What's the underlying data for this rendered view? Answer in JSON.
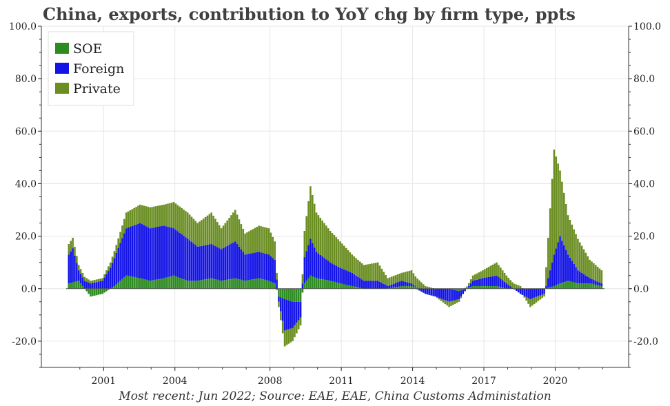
{
  "title": "China, exports, contribution to YoY chg by firm type, ppts",
  "caption": "Most recent: Jun 2022; Source: EAE, EAE, China Customs Administation",
  "colors": {
    "SOE": "#2e8b22",
    "Foreign": "#1414e6",
    "Private": "#6b8e23",
    "grid": "#e6e6e6",
    "axis": "#333333"
  },
  "chart_data": {
    "type": "bar",
    "stacked": true,
    "frequency": "monthly",
    "x_range": [
      "2000-01",
      "2022-06"
    ],
    "ylim": [
      -30,
      100
    ],
    "y_ticks": [
      -20,
      0,
      20,
      40,
      60,
      80,
      100
    ],
    "y_tick_labels": [
      "-20.0",
      "0.0",
      "20.0",
      "40.0",
      "60.0",
      "80.0",
      "100.0"
    ],
    "y_axes": "left and right (mirrored)",
    "x_tick_labels": [
      "2001",
      "2004",
      "2008",
      "2011",
      "2014",
      "2017",
      "2020"
    ],
    "grid": true,
    "legend": {
      "position": "top-left",
      "entries": [
        "SOE",
        "Foreign",
        "Private"
      ]
    },
    "series_anchors_note": "Monthly values from Jan 2000 to Jun 2022 (sampled anchors, linearly interpolated between; each value is [year, month, value])",
    "series": [
      {
        "name": "SOE",
        "anchors": [
          [
            2000,
            1,
            2
          ],
          [
            2000,
            6,
            3
          ],
          [
            2000,
            12,
            -3
          ],
          [
            2001,
            6,
            -2
          ],
          [
            2001,
            12,
            1
          ],
          [
            2002,
            6,
            5
          ],
          [
            2003,
            1,
            4
          ],
          [
            2003,
            6,
            3
          ],
          [
            2004,
            1,
            4
          ],
          [
            2004,
            6,
            5
          ],
          [
            2005,
            1,
            3
          ],
          [
            2005,
            6,
            3
          ],
          [
            2006,
            1,
            4
          ],
          [
            2006,
            6,
            3
          ],
          [
            2007,
            1,
            4
          ],
          [
            2007,
            6,
            3
          ],
          [
            2008,
            1,
            4
          ],
          [
            2008,
            6,
            3
          ],
          [
            2008,
            9,
            2
          ],
          [
            2008,
            11,
            -3
          ],
          [
            2009,
            2,
            -4
          ],
          [
            2009,
            6,
            -5
          ],
          [
            2009,
            10,
            -5
          ],
          [
            2009,
            12,
            2
          ],
          [
            2010,
            3,
            5
          ],
          [
            2010,
            6,
            4
          ],
          [
            2011,
            1,
            3
          ],
          [
            2011,
            6,
            2
          ],
          [
            2011,
            12,
            1
          ],
          [
            2012,
            6,
            0
          ],
          [
            2013,
            1,
            0
          ],
          [
            2013,
            6,
            0
          ],
          [
            2014,
            1,
            1
          ],
          [
            2014,
            6,
            1
          ],
          [
            2015,
            1,
            0
          ],
          [
            2015,
            6,
            0
          ],
          [
            2016,
            1,
            0
          ],
          [
            2016,
            6,
            -1
          ],
          [
            2017,
            1,
            1
          ],
          [
            2017,
            6,
            1
          ],
          [
            2018,
            1,
            1
          ],
          [
            2018,
            6,
            0
          ],
          [
            2019,
            1,
            0
          ],
          [
            2019,
            6,
            0
          ],
          [
            2020,
            1,
            0
          ],
          [
            2020,
            6,
            1
          ],
          [
            2020,
            9,
            2
          ],
          [
            2021,
            1,
            3
          ],
          [
            2021,
            6,
            2
          ],
          [
            2021,
            12,
            2
          ],
          [
            2022,
            6,
            1
          ]
        ]
      },
      {
        "name": "Foreign",
        "anchors": [
          [
            2000,
            1,
            11
          ],
          [
            2000,
            3,
            13
          ],
          [
            2000,
            6,
            4
          ],
          [
            2000,
            12,
            2
          ],
          [
            2001,
            6,
            3
          ],
          [
            2001,
            10,
            8
          ],
          [
            2002,
            1,
            12
          ],
          [
            2002,
            6,
            18
          ],
          [
            2003,
            1,
            21
          ],
          [
            2003,
            6,
            20
          ],
          [
            2004,
            1,
            20
          ],
          [
            2004,
            6,
            18
          ],
          [
            2005,
            1,
            16
          ],
          [
            2005,
            6,
            13
          ],
          [
            2006,
            1,
            13
          ],
          [
            2006,
            6,
            12
          ],
          [
            2007,
            1,
            14
          ],
          [
            2007,
            6,
            10
          ],
          [
            2008,
            1,
            10
          ],
          [
            2008,
            6,
            10
          ],
          [
            2008,
            9,
            9
          ],
          [
            2008,
            11,
            -2
          ],
          [
            2009,
            2,
            -12
          ],
          [
            2009,
            6,
            -10
          ],
          [
            2009,
            10,
            -6
          ],
          [
            2009,
            12,
            10
          ],
          [
            2010,
            3,
            14
          ],
          [
            2010,
            6,
            10
          ],
          [
            2011,
            1,
            7
          ],
          [
            2011,
            6,
            6
          ],
          [
            2011,
            12,
            5
          ],
          [
            2012,
            6,
            3
          ],
          [
            2013,
            1,
            3
          ],
          [
            2013,
            6,
            1
          ],
          [
            2014,
            1,
            2
          ],
          [
            2014,
            6,
            1
          ],
          [
            2015,
            1,
            -2
          ],
          [
            2015,
            6,
            -3
          ],
          [
            2016,
            1,
            -5
          ],
          [
            2016,
            6,
            -3
          ],
          [
            2017,
            1,
            2
          ],
          [
            2017,
            6,
            3
          ],
          [
            2018,
            1,
            4
          ],
          [
            2018,
            6,
            2
          ],
          [
            2019,
            1,
            -2
          ],
          [
            2019,
            6,
            -4
          ],
          [
            2020,
            1,
            -2
          ],
          [
            2020,
            6,
            12
          ],
          [
            2020,
            9,
            18
          ],
          [
            2021,
            1,
            10
          ],
          [
            2021,
            6,
            5
          ],
          [
            2021,
            12,
            2
          ],
          [
            2022,
            6,
            1
          ]
        ]
      },
      {
        "name": "Private",
        "anchors": [
          [
            2000,
            1,
            4
          ],
          [
            2000,
            3,
            4
          ],
          [
            2000,
            6,
            2
          ],
          [
            2000,
            12,
            1
          ],
          [
            2001,
            6,
            1
          ],
          [
            2001,
            10,
            2
          ],
          [
            2002,
            1,
            3
          ],
          [
            2002,
            6,
            6
          ],
          [
            2003,
            1,
            7
          ],
          [
            2003,
            6,
            8
          ],
          [
            2004,
            1,
            8
          ],
          [
            2004,
            6,
            10
          ],
          [
            2005,
            1,
            10
          ],
          [
            2005,
            6,
            9
          ],
          [
            2006,
            1,
            12
          ],
          [
            2006,
            6,
            8
          ],
          [
            2007,
            1,
            12
          ],
          [
            2007,
            6,
            8
          ],
          [
            2008,
            1,
            10
          ],
          [
            2008,
            6,
            10
          ],
          [
            2008,
            9,
            7
          ],
          [
            2008,
            11,
            -2
          ],
          [
            2009,
            2,
            -6
          ],
          [
            2009,
            6,
            -5
          ],
          [
            2009,
            10,
            -3
          ],
          [
            2009,
            12,
            10
          ],
          [
            2010,
            3,
            20
          ],
          [
            2010,
            6,
            15
          ],
          [
            2011,
            1,
            12
          ],
          [
            2011,
            6,
            10
          ],
          [
            2011,
            12,
            7
          ],
          [
            2012,
            6,
            6
          ],
          [
            2013,
            1,
            7
          ],
          [
            2013,
            6,
            3
          ],
          [
            2014,
            1,
            3
          ],
          [
            2014,
            6,
            5
          ],
          [
            2015,
            1,
            1
          ],
          [
            2015,
            6,
            0
          ],
          [
            2016,
            1,
            -2
          ],
          [
            2016,
            6,
            -1
          ],
          [
            2017,
            1,
            2
          ],
          [
            2017,
            6,
            3
          ],
          [
            2018,
            1,
            5
          ],
          [
            2018,
            6,
            3
          ],
          [
            2019,
            1,
            1
          ],
          [
            2019,
            6,
            -3
          ],
          [
            2020,
            1,
            -1
          ],
          [
            2020,
            6,
            40
          ],
          [
            2020,
            9,
            25
          ],
          [
            2021,
            1,
            15
          ],
          [
            2021,
            6,
            12
          ],
          [
            2021,
            12,
            7
          ],
          [
            2022,
            6,
            5
          ]
        ]
      }
    ]
  }
}
